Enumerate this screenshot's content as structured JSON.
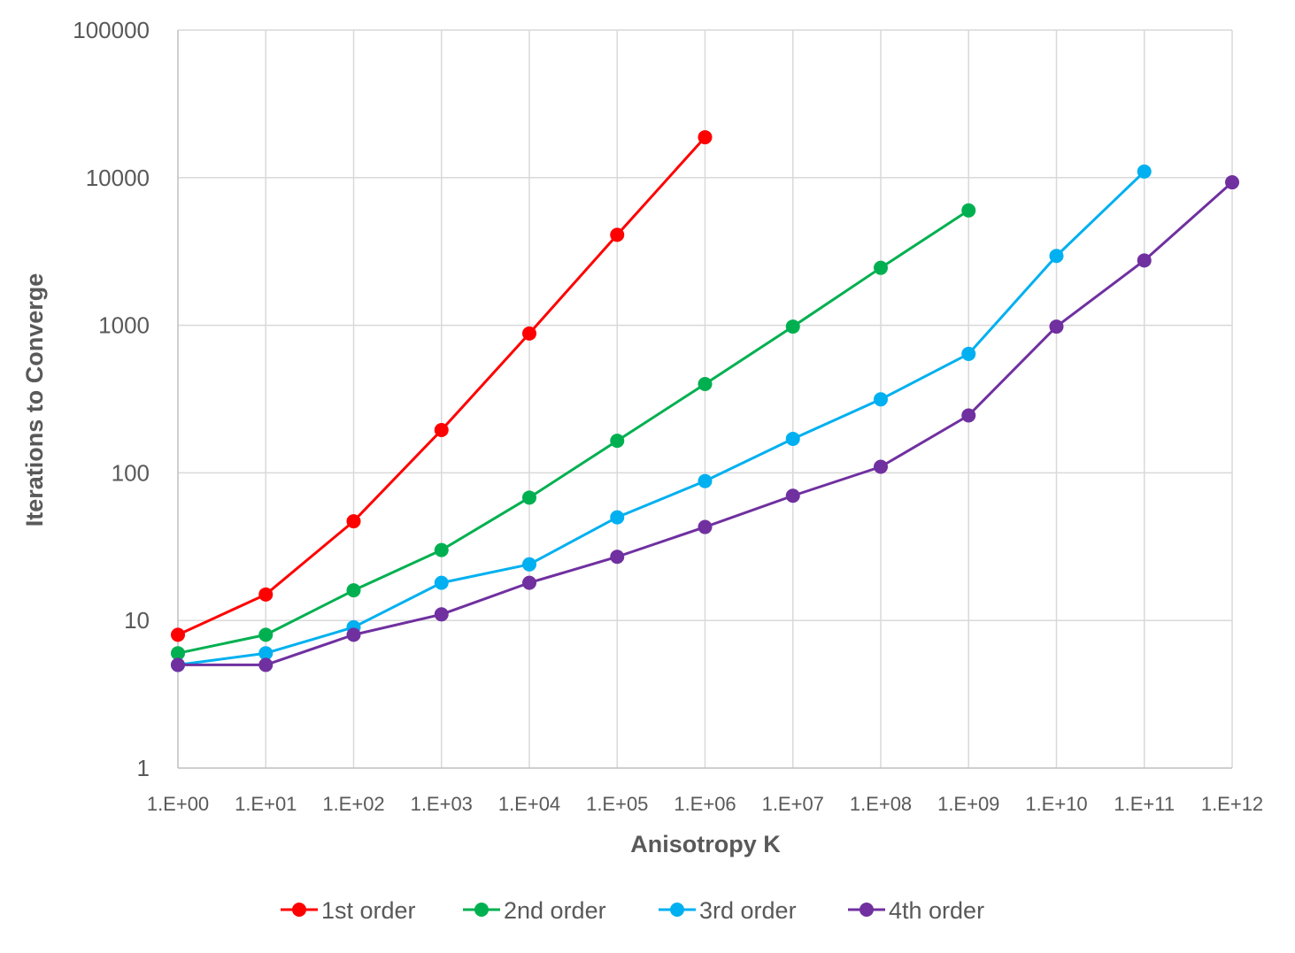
{
  "chart_data": {
    "type": "line",
    "title": "",
    "xlabel": "Anisotropy K",
    "ylabel": "Iterations to Converge",
    "x_scale": "log",
    "y_scale": "log",
    "x": [
      1,
      10,
      100,
      1000,
      10000,
      100000,
      1000000,
      10000000,
      100000000,
      1000000000,
      10000000000,
      100000000000,
      1000000000000
    ],
    "x_tick_labels": [
      "1.E+00",
      "1.E+01",
      "1.E+02",
      "1.E+03",
      "1.E+04",
      "1.E+05",
      "1.E+06",
      "1.E+07",
      "1.E+08",
      "1.E+09",
      "1.E+10",
      "1.E+11",
      "1.E+12"
    ],
    "xlim": [
      1,
      1000000000000
    ],
    "ylim": [
      1,
      100000
    ],
    "y_ticks": [
      1,
      10,
      100,
      1000,
      10000,
      100000
    ],
    "y_tick_labels": [
      "1",
      "10",
      "100",
      "1000",
      "10000",
      "100000"
    ],
    "grid": true,
    "legend_position": "bottom",
    "series": [
      {
        "name": "1st order",
        "color": "#ff0000",
        "values": [
          8,
          15,
          47,
          195,
          880,
          4100,
          18800,
          null,
          null,
          null,
          null,
          null,
          null
        ]
      },
      {
        "name": "2nd order",
        "color": "#00b050",
        "values": [
          6,
          8,
          16,
          30,
          68,
          165,
          400,
          980,
          2450,
          6000,
          null,
          null,
          null
        ]
      },
      {
        "name": "3rd order",
        "color": "#00b0f0",
        "values": [
          5,
          6,
          9,
          18,
          24,
          50,
          88,
          170,
          315,
          640,
          2950,
          11000,
          null
        ]
      },
      {
        "name": "4th order",
        "color": "#7030a0",
        "values": [
          5,
          5,
          8,
          11,
          18,
          27,
          43,
          70,
          110,
          245,
          980,
          2750,
          9300
        ]
      }
    ]
  }
}
